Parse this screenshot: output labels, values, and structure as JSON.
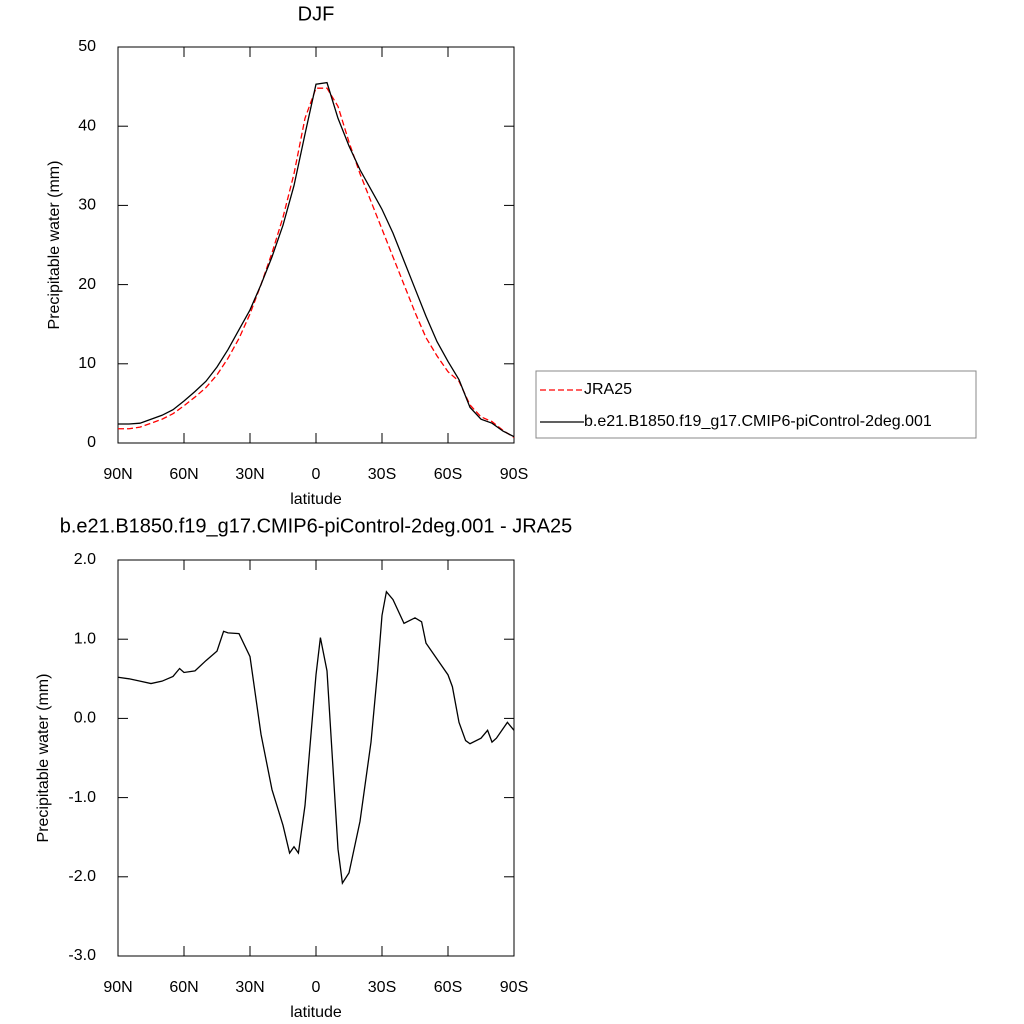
{
  "chart_data": [
    {
      "type": "line",
      "title": "DJF",
      "xlabel": "latitude",
      "ylabel": "Precipitable water (mm)",
      "x": [
        90,
        85,
        80,
        75,
        70,
        65,
        60,
        55,
        50,
        45,
        40,
        35,
        30,
        25,
        20,
        15,
        10,
        5,
        0,
        -5,
        -10,
        -15,
        -20,
        -25,
        -30,
        -35,
        -40,
        -45,
        -50,
        -55,
        -60,
        -65,
        -70,
        -75,
        -80,
        -85,
        -90
      ],
      "series": [
        {
          "name": "JRA25",
          "color": "#ff0000",
          "dash": true,
          "values": [
            1.8,
            1.8,
            2.0,
            2.5,
            3.0,
            3.7,
            4.7,
            5.8,
            7.0,
            8.6,
            10.7,
            13.2,
            16.3,
            20,
            24,
            28.5,
            34,
            41,
            44.8,
            44.8,
            42.5,
            38,
            34,
            30.5,
            27,
            23.5,
            20,
            16.5,
            13.3,
            11,
            9,
            7.8,
            4.8,
            3.3,
            2.7,
            1.6,
            0.7
          ]
        },
        {
          "name": "b.e21.B1850.f19_g17.CMIP6-piControl-2deg.001",
          "color": "#000000",
          "dash": false,
          "values": [
            2.4,
            2.4,
            2.5,
            3.0,
            3.5,
            4.2,
            5.3,
            6.5,
            7.8,
            9.6,
            11.8,
            14.3,
            16.8,
            20,
            23.5,
            27.5,
            32.5,
            39,
            45.3,
            45.5,
            41,
            37.5,
            34.5,
            32,
            29.5,
            26.5,
            23,
            19.5,
            16,
            12.8,
            10.3,
            8,
            4.5,
            3,
            2.5,
            1.5,
            0.8
          ]
        }
      ],
      "xlim": [
        90,
        -90
      ],
      "xticks": [
        {
          "value": 90,
          "label": "90N"
        },
        {
          "value": 60,
          "label": "60N"
        },
        {
          "value": 30,
          "label": "30N"
        },
        0,
        {
          "value": -30,
          "label": "30S"
        },
        {
          "value": -60,
          "label": "60S"
        },
        {
          "value": -90,
          "label": "90S"
        }
      ],
      "ylim": [
        0,
        50
      ],
      "yticks": [
        0,
        10,
        20,
        30,
        40,
        50
      ],
      "legend": "right"
    },
    {
      "type": "line",
      "title": "b.e21.B1850.f19_g17.CMIP6-piControl-2deg.001 - JRA25",
      "xlabel": "latitude",
      "ylabel": "Precipitable water (mm)",
      "x": [
        90,
        85,
        80,
        75,
        70,
        65,
        62,
        60,
        55,
        50,
        45,
        42,
        40,
        35,
        30,
        25,
        20,
        15,
        12,
        10,
        8,
        5,
        0,
        -2,
        -5,
        -10,
        -12,
        -15,
        -20,
        -25,
        -28,
        -30,
        -32,
        -35,
        -40,
        -45,
        -48,
        -50,
        -55,
        -60,
        -62,
        -65,
        -68,
        -70,
        -75,
        -78,
        -80,
        -82,
        -87,
        -90
      ],
      "series": [
        {
          "name": null,
          "color": "#000000",
          "dash": false,
          "values": [
            0.52,
            0.5,
            0.47,
            0.44,
            0.47,
            0.53,
            0.63,
            0.58,
            0.6,
            0.73,
            0.85,
            1.1,
            1.08,
            1.07,
            0.78,
            -0.2,
            -0.9,
            -1.35,
            -1.7,
            -1.62,
            -1.7,
            -1.1,
            0.55,
            1.02,
            0.6,
            -1.65,
            -2.08,
            -1.95,
            -1.3,
            -0.3,
            0.6,
            1.3,
            1.6,
            1.5,
            1.2,
            1.27,
            1.22,
            0.95,
            0.75,
            0.55,
            0.4,
            -0.05,
            -0.28,
            -0.32,
            -0.25,
            -0.15,
            -0.3,
            -0.25,
            -0.05,
            -0.15
          ]
        }
      ],
      "xlim": [
        90,
        -90
      ],
      "xticks": [
        {
          "value": 90,
          "label": "90N"
        },
        {
          "value": 60,
          "label": "60N"
        },
        {
          "value": 30,
          "label": "30N"
        },
        0,
        {
          "value": -30,
          "label": "30S"
        },
        {
          "value": -60,
          "label": "60S"
        },
        {
          "value": -90,
          "label": "90S"
        }
      ],
      "ylim": [
        -3,
        2
      ],
      "yticks": [
        {
          "value": -3,
          "label": "-3.0"
        },
        {
          "value": -2,
          "label": "-2.0"
        },
        {
          "value": -1,
          "label": "-1.0"
        },
        {
          "value": 0,
          "label": "0.0"
        },
        {
          "value": 1,
          "label": "1.0"
        },
        {
          "value": 2,
          "label": "2.0"
        }
      ]
    }
  ]
}
